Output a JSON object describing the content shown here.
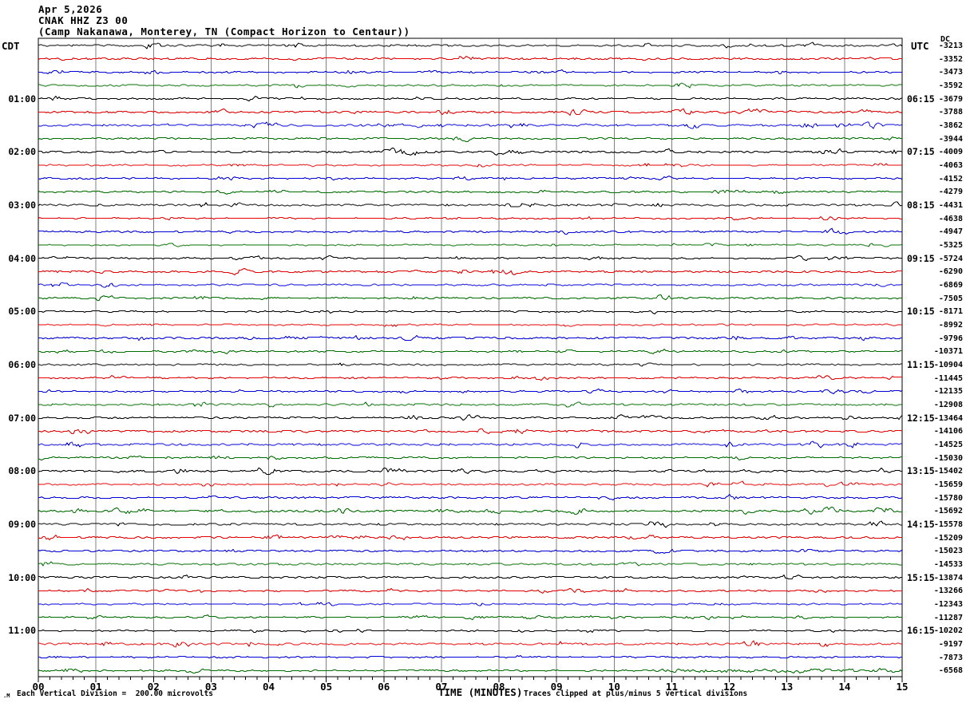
{
  "header": {
    "date": "Apr 5,2026",
    "station": "CNAK HHZ Z3 00",
    "location": "(Camp Nakanawa, Monterey, TN (Compact Horizon to Centaur))"
  },
  "left_axis": {
    "header": "CDT"
  },
  "right_axis": {
    "header": "UTC",
    "dc_label": "DC"
  },
  "x_axis": {
    "title": "TIME (MINUTES)"
  },
  "footer": {
    "logo_glyph": ".M",
    "scale_note": "Each Vertical Division =  200.00 microvolts",
    "clip_note": "Traces clipped at plus/minus 5 vertical divisions"
  },
  "colors": {
    "background": "#ffffff",
    "border": "#000000",
    "grid": "#808080",
    "tick": "#000000"
  },
  "chart_data": {
    "type": "line",
    "variant": "helicorder-seismogram",
    "title": "CNAK HHZ Z3 00",
    "date": "Apr 5,2026",
    "station_name": "Camp Nakanawa, Monterey, TN",
    "instrument": "Compact Horizon to Centaur",
    "timezone_left": "CDT",
    "timezone_right": "UTC",
    "xlabel": "TIME (MINUTES)",
    "x_range_minutes": [
      0,
      15
    ],
    "x_tick_labels": [
      "00",
      "01",
      "02",
      "03",
      "04",
      "05",
      "06",
      "07",
      "08",
      "09",
      "10",
      "11",
      "12",
      "13",
      "14",
      "15"
    ],
    "minor_ticks_per_minute": 4,
    "num_rows": 48,
    "minutes_per_row": 15,
    "row_color_cycle": [
      "#000000",
      "#e80000",
      "#0000dd",
      "#007000"
    ],
    "first_labeled_row": 4,
    "label_row_interval": 4,
    "left_hour_labels": [
      "01:00",
      "02:00",
      "03:00",
      "04:00",
      "05:00",
      "06:00",
      "07:00",
      "08:00",
      "09:00",
      "10:00",
      "11:00"
    ],
    "right_quarter_labels": [
      "06:15",
      "07:15",
      "08:15",
      "09:15",
      "10:15",
      "11:15",
      "12:15",
      "13:15",
      "14:15",
      "15:15",
      "16:15"
    ],
    "dc_offsets": [
      -3213,
      -3352,
      -3473,
      -3592,
      -3679,
      -3788,
      -3862,
      -3944,
      -4009,
      -4063,
      -4152,
      -4279,
      -4431,
      -4638,
      -4947,
      -5325,
      -5724,
      -6290,
      -6869,
      -7505,
      -8171,
      -8992,
      -9796,
      -10371,
      -10904,
      -11445,
      -12135,
      -12908,
      -13464,
      -14106,
      -14525,
      -15030,
      -15402,
      -15659,
      -15780,
      -15692,
      -15578,
      -15209,
      -15023,
      -14533,
      -13874,
      -13266,
      -12343,
      -11287,
      -10202,
      -9197,
      -7873,
      -6568
    ],
    "vertical_division_microvolts": 200.0,
    "clip_divisions": 5,
    "content_note": "All 48 quarter-hour traces show low-amplitude background seismic noise"
  }
}
